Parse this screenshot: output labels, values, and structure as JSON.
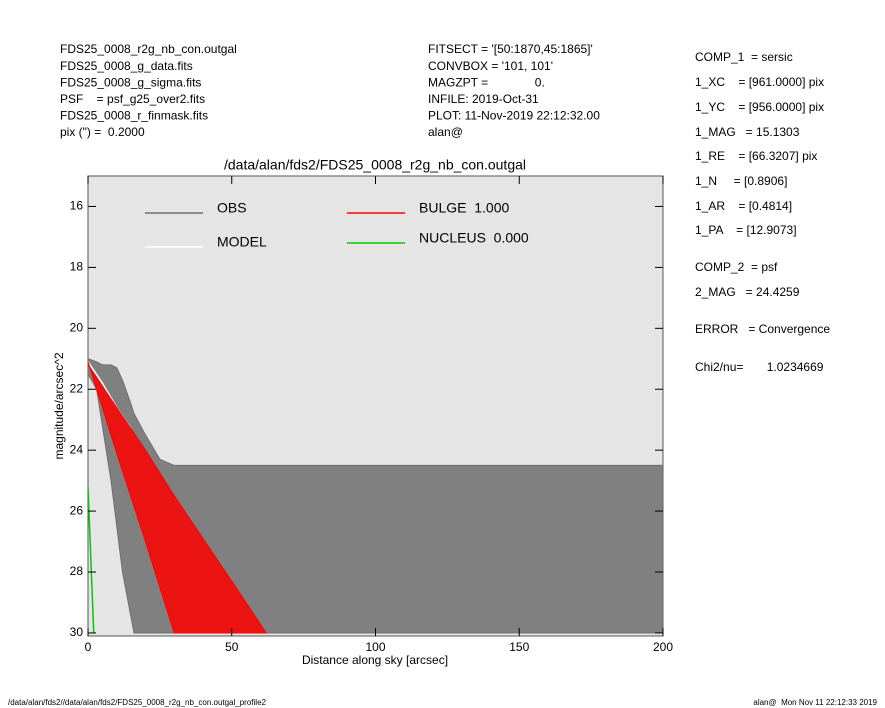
{
  "header": {
    "left": [
      "FDS25_0008_r2g_nb_con.outgal",
      "FDS25_0008_g_data.fits",
      "FDS25_0008_g_sigma.fits",
      "PSF    = psf_g25_over2.fits",
      "FDS25_0008_r_finmask.fits",
      "pix (\") =  0.2000"
    ],
    "middle": [
      "FITSECT = '[50:1870,45:1865]'",
      "CONVBOX = '101, 101'",
      "MAGZPT =              0.",
      "INFILE: 2019-Oct-31",
      "PLOT: 11-Nov-2019 22:12:32.00",
      "alan@"
    ],
    "right": [
      "COMP_1  = sersic",
      "1_XC    = [961.0000] pix",
      "1_YC    = [956.0000] pix",
      "1_MAG   = 15.1303",
      "1_RE    = [66.3207] pix",
      "1_N     = [0.8906]",
      "1_AR    = [0.4814]",
      "1_PA    = [12.9073]",
      "COMP_2  = psf",
      "2_MAG   = 24.4259",
      "ERROR   = Convergence",
      "Chi2/nu=       1.0234669"
    ]
  },
  "footer": {
    "left": "/data/alan/fds2//data/alan/fds2/FDS25_0008_r2g_nb_con.outgal_profile2",
    "right": "alan@  Mon Nov 11 22:12:33 2019"
  },
  "chart_data": {
    "type": "profile",
    "title": "/data/alan/fds2/FDS25_0008_r2g_nb_con.outgal",
    "x_label": "Distance along sky [arcsec]",
    "y_label": "magnitude/arcsec^2",
    "xlim": [
      0,
      200
    ],
    "xticks": [
      0,
      50,
      100,
      150,
      200
    ],
    "ylim": [
      15,
      30.1
    ],
    "yticks": [
      16,
      18,
      20,
      22,
      24,
      26,
      28,
      30
    ],
    "y_inverted": true,
    "series": [
      {
        "name": "OBS",
        "color": "#6e6e6e",
        "kind": "band",
        "x": [
          0,
          3,
          5,
          8,
          10,
          12,
          15,
          16,
          20,
          25,
          30,
          50,
          100,
          150,
          200
        ],
        "values": [
          21.0,
          21.1,
          21.2,
          21.2,
          21.3,
          21.7,
          22.5,
          22.8,
          23.5,
          24.3,
          24.5,
          24.5,
          24.5,
          24.5,
          24.5
        ],
        "lower": [
          21.5,
          22.0,
          23.2,
          25.0,
          26.5,
          28.0,
          29.5,
          30.0,
          30.0,
          30.0,
          30.0,
          30.0,
          30.0,
          30.0,
          30.0
        ]
      },
      {
        "name": "MODEL",
        "color": "#ffffff",
        "kind": "line",
        "x": [
          0,
          5,
          10,
          15
        ],
        "values": [
          21.1,
          21.8,
          22.6,
          23.3
        ]
      },
      {
        "name": "BULGE  1.000",
        "color": "#ff0000",
        "kind": "band",
        "x": [
          0,
          10,
          20,
          30,
          40,
          50,
          62
        ],
        "values": [
          21.2,
          22.6,
          24.0,
          25.5,
          26.9,
          28.3,
          30.0
        ],
        "lower": [
          21.1,
          24.1,
          27.0,
          30.0,
          30.0,
          30.0,
          30.0
        ]
      },
      {
        "name": "NUCLEUS  0.000",
        "color": "#00cc00",
        "kind": "line",
        "x": [
          0,
          2
        ],
        "values": [
          25.2,
          30.0
        ]
      }
    ]
  }
}
